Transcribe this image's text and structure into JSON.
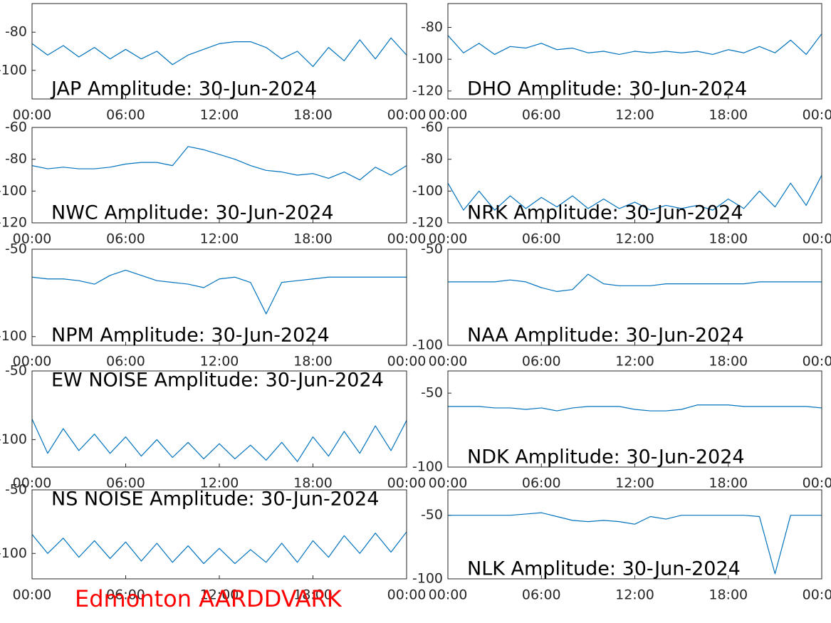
{
  "chart_data": [
    {
      "type": "line",
      "title": "JAP Amplitude: 30-Jun-2024",
      "x": [
        0,
        1,
        2,
        3,
        4,
        5,
        6,
        7,
        8,
        9,
        10,
        11,
        12,
        13,
        14,
        15,
        16,
        17,
        18,
        19,
        20,
        21,
        22,
        23,
        24
      ],
      "series": [
        {
          "color": "#0072bd",
          "values": [
            -86,
            -92,
            -87,
            -93,
            -88,
            -94,
            -89,
            -94,
            -90,
            -97,
            -92,
            -89,
            -86,
            -85,
            -85,
            -88,
            -94,
            -90,
            -98,
            -88,
            -95,
            -84,
            -94,
            -83,
            -92
          ]
        }
      ],
      "xlim": [
        0,
        24
      ],
      "xticks": [
        {
          "value": 0,
          "label": "00:00"
        },
        {
          "value": 6,
          "label": "06:00"
        },
        {
          "value": 12,
          "label": "12:00"
        },
        {
          "value": 18,
          "label": "18:00"
        },
        {
          "value": 24,
          "label": "00:00"
        }
      ],
      "ylim": [
        -115,
        -65
      ],
      "yticks": [
        -100,
        -80
      ]
    },
    {
      "type": "line",
      "title": "DHO Amplitude: 30-Jun-2024",
      "x": [
        0,
        1,
        2,
        3,
        4,
        5,
        6,
        7,
        8,
        9,
        10,
        11,
        12,
        13,
        14,
        15,
        16,
        17,
        18,
        19,
        20,
        21,
        22,
        23,
        24
      ],
      "series": [
        {
          "color": "#0072bd",
          "values": [
            -85,
            -96,
            -90,
            -97,
            -92,
            -93,
            -90,
            -94,
            -93,
            -96,
            -95,
            -97,
            -95,
            -96,
            -95,
            -96,
            -95,
            -97,
            -94,
            -96,
            -92,
            -96,
            -88,
            -97,
            -84
          ]
        }
      ],
      "xlim": [
        0,
        24
      ],
      "xticks": [
        {
          "value": 0,
          "label": "00:00"
        },
        {
          "value": 6,
          "label": "06:00"
        },
        {
          "value": 12,
          "label": "12:00"
        },
        {
          "value": 18,
          "label": "18:00"
        },
        {
          "value": 24,
          "label": "00:00"
        }
      ],
      "ylim": [
        -125,
        -65
      ],
      "yticks": [
        -120,
        -100,
        -80
      ]
    },
    {
      "type": "line",
      "title": "NWC Amplitude: 30-Jun-2024",
      "x": [
        0,
        1,
        2,
        3,
        4,
        5,
        6,
        7,
        8,
        9,
        10,
        11,
        12,
        13,
        14,
        15,
        16,
        17,
        18,
        19,
        20,
        21,
        22,
        23,
        24
      ],
      "series": [
        {
          "color": "#0072bd",
          "values": [
            -84,
            -86,
            -85,
            -86,
            -86,
            -85,
            -83,
            -82,
            -82,
            -84,
            -72,
            -74,
            -77,
            -80,
            -84,
            -87,
            -88,
            -90,
            -89,
            -92,
            -88,
            -93,
            -85,
            -90,
            -84
          ]
        }
      ],
      "xlim": [
        0,
        24
      ],
      "xticks": [
        {
          "value": 0,
          "label": "00:00"
        },
        {
          "value": 6,
          "label": "06:00"
        },
        {
          "value": 12,
          "label": "12:00"
        },
        {
          "value": 18,
          "label": "18:00"
        },
        {
          "value": 24,
          "label": "00:00"
        }
      ],
      "ylim": [
        -120,
        -60
      ],
      "yticks": [
        -120,
        -100,
        -80,
        -60
      ]
    },
    {
      "type": "line",
      "title": "NRK Amplitude: 30-Jun-2024",
      "x": [
        0,
        1,
        2,
        3,
        4,
        5,
        6,
        7,
        8,
        9,
        10,
        11,
        12,
        13,
        14,
        15,
        16,
        17,
        18,
        19,
        20,
        21,
        22,
        23,
        24
      ],
      "series": [
        {
          "color": "#0072bd",
          "values": [
            -95,
            -112,
            -100,
            -112,
            -103,
            -111,
            -104,
            -110,
            -103,
            -111,
            -105,
            -111,
            -107,
            -112,
            -109,
            -111,
            -109,
            -112,
            -105,
            -111,
            -100,
            -110,
            -95,
            -109,
            -90
          ]
        }
      ],
      "xlim": [
        0,
        24
      ],
      "xticks": [
        {
          "value": 0,
          "label": "00:00"
        },
        {
          "value": 6,
          "label": "06:00"
        },
        {
          "value": 12,
          "label": "12:00"
        },
        {
          "value": 18,
          "label": "18:00"
        },
        {
          "value": 24,
          "label": "00:00"
        }
      ],
      "ylim": [
        -120,
        -60
      ],
      "yticks": [
        -120,
        -100,
        -80,
        -60
      ]
    },
    {
      "type": "line",
      "title": "NPM Amplitude: 30-Jun-2024",
      "x": [
        0,
        1,
        2,
        3,
        4,
        5,
        6,
        7,
        8,
        9,
        10,
        11,
        12,
        13,
        14,
        15,
        16,
        17,
        18,
        19,
        20,
        21,
        22,
        23,
        24
      ],
      "series": [
        {
          "color": "#0072bd",
          "values": [
            -66,
            -67,
            -67,
            -68,
            -70,
            -65,
            -62,
            -65,
            -68,
            -69,
            -70,
            -72,
            -67,
            -66,
            -69,
            -87,
            -69,
            -68,
            -67,
            -66,
            -66,
            -66,
            -66,
            -66,
            -66
          ]
        }
      ],
      "xlim": [
        0,
        24
      ],
      "xticks": [
        {
          "value": 0,
          "label": "00:00"
        },
        {
          "value": 6,
          "label": "06:00"
        },
        {
          "value": 12,
          "label": "12:00"
        },
        {
          "value": 18,
          "label": "18:00"
        },
        {
          "value": 24,
          "label": "00:00"
        }
      ],
      "ylim": [
        -105,
        -50
      ],
      "yticks": [
        -100,
        -50
      ]
    },
    {
      "type": "line",
      "title": "NAA Amplitude: 30-Jun-2024",
      "x": [
        0,
        1,
        2,
        3,
        4,
        5,
        6,
        7,
        8,
        9,
        10,
        11,
        12,
        13,
        14,
        15,
        16,
        17,
        18,
        19,
        20,
        21,
        22,
        23,
        24
      ],
      "series": [
        {
          "color": "#0072bd",
          "values": [
            -67,
            -67,
            -67,
            -67,
            -66,
            -67,
            -70,
            -72,
            -71,
            -63,
            -68,
            -69,
            -69,
            -69,
            -68,
            -68,
            -68,
            -68,
            -68,
            -68,
            -67,
            -67,
            -67,
            -67,
            -67
          ]
        }
      ],
      "xlim": [
        0,
        24
      ],
      "xticks": [
        {
          "value": 0,
          "label": "00:00"
        },
        {
          "value": 6,
          "label": "06:00"
        },
        {
          "value": 12,
          "label": "12:00"
        },
        {
          "value": 18,
          "label": "18:00"
        },
        {
          "value": 24,
          "label": "00:00"
        }
      ],
      "ylim": [
        -100,
        -50
      ],
      "yticks": [
        -100,
        -50
      ]
    },
    {
      "type": "line",
      "title": "EW NOISE Amplitude: 30-Jun-2024",
      "x": [
        0,
        1,
        2,
        3,
        4,
        5,
        6,
        7,
        8,
        9,
        10,
        11,
        12,
        13,
        14,
        15,
        16,
        17,
        18,
        19,
        20,
        21,
        22,
        23,
        24
      ],
      "series": [
        {
          "color": "#0072bd",
          "values": [
            -85,
            -110,
            -92,
            -108,
            -96,
            -110,
            -98,
            -112,
            -100,
            -113,
            -102,
            -114,
            -103,
            -114,
            -104,
            -115,
            -102,
            -116,
            -98,
            -112,
            -94,
            -110,
            -90,
            -108,
            -86
          ]
        }
      ],
      "xlim": [
        0,
        24
      ],
      "xticks": [
        {
          "value": 0,
          "label": "00:00"
        },
        {
          "value": 6,
          "label": "06:00"
        },
        {
          "value": 12,
          "label": "12:00"
        },
        {
          "value": 18,
          "label": "18:00"
        },
        {
          "value": 24,
          "label": "00:00"
        }
      ],
      "ylim": [
        -120,
        -50
      ],
      "yticks": [
        -100,
        -50
      ]
    },
    {
      "type": "line",
      "title": "NDK Amplitude: 30-Jun-2024",
      "x": [
        0,
        1,
        2,
        3,
        4,
        5,
        6,
        7,
        8,
        9,
        10,
        11,
        12,
        13,
        14,
        15,
        16,
        17,
        18,
        19,
        20,
        21,
        22,
        23,
        24
      ],
      "series": [
        {
          "color": "#0072bd",
          "values": [
            -59,
            -59,
            -59,
            -60,
            -60,
            -61,
            -60,
            -62,
            -60,
            -59,
            -59,
            -59,
            -61,
            -62,
            -62,
            -61,
            -58,
            -58,
            -58,
            -59,
            -59,
            -59,
            -59,
            -59,
            -60
          ]
        }
      ],
      "xlim": [
        0,
        24
      ],
      "xticks": [
        {
          "value": 0,
          "label": "00:00"
        },
        {
          "value": 6,
          "label": "06:00"
        },
        {
          "value": 12,
          "label": "12:00"
        },
        {
          "value": 18,
          "label": "18:00"
        },
        {
          "value": 24,
          "label": "00:00"
        }
      ],
      "ylim": [
        -100,
        -35
      ],
      "yticks": [
        -100,
        -50
      ]
    },
    {
      "type": "line",
      "title": "NS NOISE Amplitude: 30-Jun-2024",
      "x": [
        0,
        1,
        2,
        3,
        4,
        5,
        6,
        7,
        8,
        9,
        10,
        11,
        12,
        13,
        14,
        15,
        16,
        17,
        18,
        19,
        20,
        21,
        22,
        23,
        24
      ],
      "series": [
        {
          "color": "#0072bd",
          "values": [
            -85,
            -100,
            -88,
            -103,
            -90,
            -104,
            -91,
            -106,
            -92,
            -107,
            -94,
            -108,
            -96,
            -108,
            -97,
            -107,
            -92,
            -107,
            -90,
            -103,
            -86,
            -100,
            -84,
            -99,
            -83
          ]
        }
      ],
      "xlim": [
        0,
        24
      ],
      "xticks": [
        {
          "value": 0,
          "label": "00:00"
        },
        {
          "value": 6,
          "label": "06:00"
        },
        {
          "value": 12,
          "label": "12:00"
        },
        {
          "value": 18,
          "label": "18:00"
        },
        {
          "value": 24,
          "label": "00:00"
        }
      ],
      "ylim": [
        -120,
        -50
      ],
      "yticks": [
        -100,
        -50
      ]
    },
    {
      "type": "line",
      "title": "NLK Amplitude: 30-Jun-2024",
      "x": [
        0,
        1,
        2,
        3,
        4,
        5,
        6,
        7,
        8,
        9,
        10,
        11,
        12,
        13,
        14,
        15,
        16,
        17,
        18,
        19,
        20,
        21,
        22,
        23,
        24
      ],
      "series": [
        {
          "color": "#0072bd",
          "values": [
            -50,
            -50,
            -50,
            -50,
            -50,
            -49,
            -48,
            -51,
            -54,
            -55,
            -54,
            -55,
            -57,
            -51,
            -53,
            -50,
            -50,
            -50,
            -50,
            -50,
            -51,
            -96,
            -50,
            -50,
            -50
          ]
        }
      ],
      "xlim": [
        0,
        24
      ],
      "xticks": [
        {
          "value": 0,
          "label": "00:00"
        },
        {
          "value": 6,
          "label": "06:00"
        },
        {
          "value": 12,
          "label": "12:00"
        },
        {
          "value": 18,
          "label": "18:00"
        },
        {
          "value": 24,
          "label": "00:00"
        }
      ],
      "ylim": [
        -100,
        -30
      ],
      "yticks": [
        -100,
        -50
      ]
    }
  ],
  "footer": "Edmonton AARDDVARK"
}
